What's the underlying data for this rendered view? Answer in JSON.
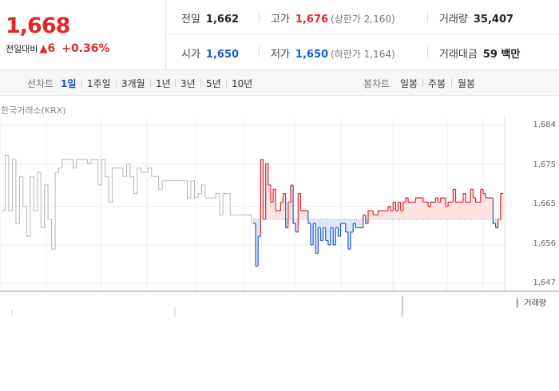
{
  "quote": {
    "price": "1,668",
    "change_label": "전일대비",
    "change_icon": "up-triangle-icon",
    "change_symbol": "▲",
    "change_amount": "6",
    "change_pct": "+0.36%"
  },
  "stats": {
    "prev_close": {
      "label": "전일",
      "value": "1,662"
    },
    "high": {
      "label": "고가",
      "value": "1,676",
      "sub": "(상한가 2,160)"
    },
    "volume": {
      "label": "거래량",
      "value": "35,407"
    },
    "open": {
      "label": "시가",
      "value": "1,650"
    },
    "low": {
      "label": "저가",
      "value": "1,650",
      "sub": "(하한가 1,164)"
    },
    "turnover": {
      "label": "거래대금",
      "value": "59 백만"
    }
  },
  "tabs": {
    "line_title": "선차트",
    "line_periods": [
      "1일",
      "1주일",
      "3개월",
      "1년",
      "3년",
      "5년",
      "10년"
    ],
    "line_active": "1일",
    "candle_title": "봉차트",
    "candle_periods": [
      "일봉",
      "주봉",
      "월봉"
    ]
  },
  "source": "한국거래소(KRX)",
  "volume_legend": "거래량",
  "colors": {
    "up": "#e0272a",
    "down": "#1a5bd6",
    "prev": "#b7b7b7",
    "up_fill": "#fde2e2",
    "down_fill": "#dde7f6"
  },
  "chart_data": {
    "type": "line",
    "ylim": [
      1647,
      1684
    ],
    "yticks": [
      "1,684",
      "1,675",
      "1,665",
      "1,656",
      "1,647"
    ],
    "baseline": 1662,
    "series": [
      {
        "values": [
          1664,
          1677,
          1664,
          1676,
          1661,
          1672,
          1665,
          1658,
          1672,
          1664,
          1673,
          1660,
          1670,
          1662,
          1655,
          1673,
          1674,
          1676,
          1676,
          1676,
          1674,
          1676,
          1676,
          1676,
          1675,
          1676,
          1676,
          1670,
          1676,
          1672,
          1666,
          1674,
          1674,
          1674,
          1672,
          1675,
          1672,
          1668,
          1674,
          1673,
          1673,
          1674,
          1672,
          1672,
          1669,
          1671,
          1671,
          1671,
          1671,
          1671,
          1671,
          1671,
          1667,
          1671,
          1667,
          1668,
          1670,
          1667,
          1667,
          1667,
          1668,
          1663,
          1668,
          1668,
          1663,
          1663,
          1663,
          1663,
          1663,
          1663,
          1661
        ]
      },
      {
        "values": [
          1661,
          1651,
          1658,
          1676,
          1662,
          1675,
          1670,
          1666,
          1669,
          1664,
          1664,
          1666,
          1668,
          1660,
          1666,
          1670,
          1661,
          1659,
          1668,
          1664,
          1664,
          1664,
          1661,
          1656,
          1661,
          1654,
          1660,
          1657,
          1660,
          1657,
          1656,
          1660,
          1656,
          1660,
          1658,
          1661,
          1661,
          1659,
          1655,
          1659,
          1661,
          1660,
          1660,
          1660,
          1663,
          1661,
          1664,
          1664,
          1663,
          1663,
          1664,
          1664,
          1664,
          1664,
          1665,
          1664,
          1666,
          1664,
          1666,
          1664,
          1666,
          1667,
          1666,
          1666,
          1666,
          1667,
          1667,
          1667,
          1666,
          1666,
          1665,
          1666,
          1666,
          1667,
          1666,
          1667,
          1667,
          1665,
          1666,
          1666,
          1669,
          1666,
          1666,
          1666,
          1668,
          1666,
          1666,
          1669,
          1667,
          1666,
          1666,
          1669,
          1668,
          1667,
          1667,
          1667,
          1661,
          1660,
          1662,
          1668,
          1668
        ]
      }
    ]
  }
}
